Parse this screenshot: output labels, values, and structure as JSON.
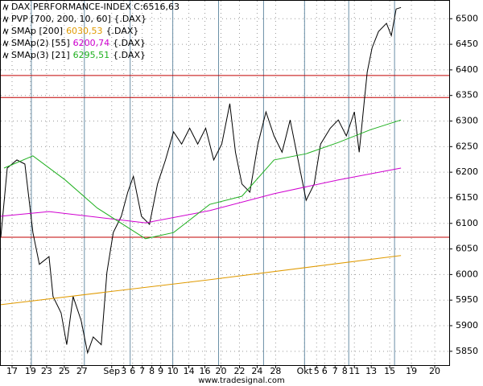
{
  "chart_data": {
    "type": "line",
    "title": "DAX PERFORMANCE-INDEX",
    "title_value": "C:6516,63",
    "indicator": "PVP [700, 200, 10, 60] {.DAX}",
    "source": "www.tradesignal.com",
    "xlim": [
      0,
      558
    ],
    "ylim": [
      5823,
      6535
    ],
    "yticks": [
      5850,
      5900,
      5950,
      6000,
      6050,
      6100,
      6150,
      6200,
      6250,
      6300,
      6350,
      6400,
      6450,
      6500
    ],
    "xticks": [
      {
        "value": 14,
        "label": "17"
      },
      {
        "value": 37,
        "label": "19"
      },
      {
        "value": 57,
        "label": "23"
      },
      {
        "value": 79,
        "label": "25"
      },
      {
        "value": 101,
        "label": "27"
      },
      {
        "value": 138,
        "label": "Sep"
      },
      {
        "value": 153,
        "label": "3"
      },
      {
        "value": 164,
        "label": "6"
      },
      {
        "value": 176,
        "label": "7"
      },
      {
        "value": 188,
        "label": "8"
      },
      {
        "value": 199,
        "label": "9"
      },
      {
        "value": 214,
        "label": "10"
      },
      {
        "value": 234,
        "label": "14"
      },
      {
        "value": 254,
        "label": "16"
      },
      {
        "value": 274,
        "label": "20"
      },
      {
        "value": 297,
        "label": "22"
      },
      {
        "value": 319,
        "label": "24"
      },
      {
        "value": 342,
        "label": "28"
      },
      {
        "value": 378,
        "label": "Okt"
      },
      {
        "value": 393,
        "label": "5"
      },
      {
        "value": 403,
        "label": "6"
      },
      {
        "value": 416,
        "label": "7"
      },
      {
        "value": 428,
        "label": "8"
      },
      {
        "value": 440,
        "label": "11"
      },
      {
        "value": 461,
        "label": "13"
      },
      {
        "value": 484,
        "label": "15"
      },
      {
        "value": 511,
        "label": "19"
      },
      {
        "value": 540,
        "label": "20"
      }
    ],
    "grid": true,
    "vlines": [
      38,
      104,
      161,
      214,
      271,
      327,
      378,
      433,
      490
    ],
    "vline_color": "#6a8ea6",
    "hlines": [
      6389,
      6346,
      6073
    ],
    "hline_color": "#c00000",
    "series": [
      {
        "name": "DAX PERFORMANCE-INDEX",
        "color": "#000000",
        "x": [
          0,
          8,
          20,
          30,
          40,
          48,
          60,
          65,
          75,
          82,
          90,
          100,
          108,
          115,
          125,
          132,
          140,
          150,
          158,
          165,
          175,
          185,
          195,
          205,
          215,
          225,
          235,
          245,
          255,
          265,
          275,
          285,
          292,
          300,
          310,
          320,
          330,
          340,
          350,
          360,
          370,
          380,
          390,
          398,
          410,
          420,
          430,
          440,
          446,
          452,
          456,
          462,
          470,
          480,
          486,
          492,
          498
        ],
        "values": [
          6073,
          6208,
          6224,
          6216,
          6082,
          6020,
          6035,
          5957,
          5925,
          5863,
          5957,
          5910,
          5847,
          5878,
          5863,
          6004,
          6082,
          6114,
          6161,
          6192,
          6114,
          6098,
          6177,
          6224,
          6279,
          6255,
          6286,
          6255,
          6286,
          6224,
          6255,
          6334,
          6239,
          6177,
          6161,
          6255,
          6318,
          6271,
          6239,
          6302,
          6224,
          6145,
          6177,
          6255,
          6286,
          6302,
          6271,
          6318,
          6239,
          6334,
          6396,
          6443,
          6475,
          6491,
          6467,
          6519,
          6522
        ]
      },
      {
        "name": "SMAp [200]",
        "value_label": "6030,53",
        "suffix": "{.DAX}",
        "color": "#e09a00",
        "x": [
          0,
          250,
          498
        ],
        "values": [
          5941,
          5988,
          6037
        ]
      },
      {
        "name": "SMAp(2) [55]",
        "value_label": "6200,74",
        "suffix": "{.DAX}",
        "color": "#d000d0",
        "x": [
          0,
          60,
          120,
          180,
          260,
          340,
          420,
          498
        ],
        "values": [
          6114,
          6123,
          6112,
          6101,
          6125,
          6158,
          6185,
          6208
        ]
      },
      {
        "name": "SMAp(3) [21]",
        "value_label": "6295,51",
        "suffix": "{.DAX}",
        "color": "#20b020",
        "x": [
          4,
          40,
          80,
          120,
          180,
          215,
          260,
          300,
          340,
          380,
          420,
          460,
          498
        ],
        "values": [
          6208,
          6232,
          6185,
          6130,
          6070,
          6082,
          6137,
          6153,
          6224,
          6236,
          6258,
          6283,
          6302
        ]
      }
    ]
  }
}
